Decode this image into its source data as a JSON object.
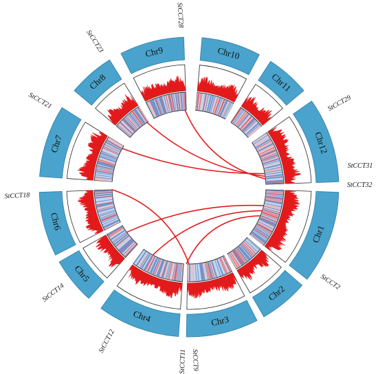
{
  "chromosomes": [
    {
      "label": "Chr1"
    },
    {
      "label": "Chr2"
    },
    {
      "label": "Chr3"
    },
    {
      "label": "Chr4"
    },
    {
      "label": "Chr5"
    },
    {
      "label": "Chr6"
    },
    {
      "label": "Chr7"
    },
    {
      "label": "Chr8"
    },
    {
      "label": "Chr9"
    },
    {
      "label": "Chr10"
    },
    {
      "label": "Chr11"
    },
    {
      "label": "Chr12"
    }
  ],
  "genes": [
    {
      "label": "StCCT2"
    },
    {
      "label": "StCCT9"
    },
    {
      "label": "StCCT11"
    },
    {
      "label": "StCCT12"
    },
    {
      "label": "StCCT14"
    },
    {
      "label": "StCCT18"
    },
    {
      "label": "StCCT21"
    },
    {
      "label": "StCCT23"
    },
    {
      "label": "StCCT28"
    },
    {
      "label": "StCCT29"
    },
    {
      "label": "StCCT31"
    },
    {
      "label": "StCCT32"
    }
  ]
}
